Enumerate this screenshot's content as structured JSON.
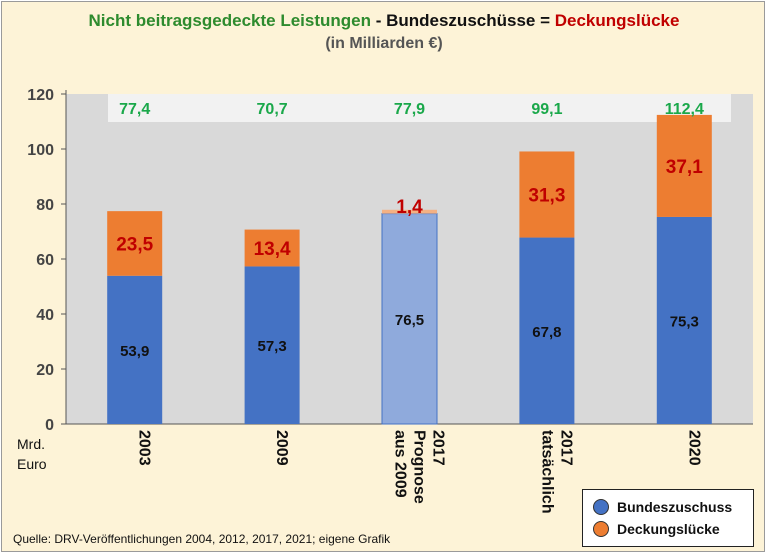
{
  "title": {
    "part1": "Nicht beitragsgedeckte Leistungen",
    "op1": " - ",
    "part2": "Bundeszuschüsse",
    "op2": " = ",
    "part3": "Deckungslücke",
    "subtitle": "(in Milliarden €)"
  },
  "unit_label_line1": "Mrd.",
  "unit_label_line2": "Euro",
  "source": "Quelle: DRV-Veröffentlichungen 2004, 2012, 2017, 2021; eigene Grafik",
  "legend": {
    "items": [
      {
        "label": "Bundeszuschuss",
        "color": "#4472c4"
      },
      {
        "label": "Deckungslücke",
        "color": "#ed7d31"
      }
    ]
  },
  "colors": {
    "bundeszuschuss": "#4472c4",
    "bundeszuschuss_prognose": "#8faadc",
    "deckungsluecke": "#ed7d31",
    "deckungsluecke_prognose": "#f4b183",
    "total_label": "#1aa84a",
    "gap_label": "#c00000",
    "plot_background": "#d9d9d9",
    "totals_band": "#f2f2f2"
  },
  "chart_data": {
    "type": "bar",
    "stacked": true,
    "categories": [
      [
        "2003"
      ],
      [
        "2009"
      ],
      [
        "2017",
        "Prognose",
        "aus 2009"
      ],
      [
        "2017",
        "tatsächlich"
      ],
      [
        "2020"
      ]
    ],
    "series": [
      {
        "name": "Bundeszuschuss",
        "values": [
          53.9,
          57.3,
          76.5,
          67.8,
          75.3
        ],
        "labels": [
          "53,9",
          "57,3",
          "76,5",
          "67,8",
          "75,3"
        ]
      },
      {
        "name": "Deckungslücke",
        "values": [
          23.5,
          13.4,
          1.4,
          31.3,
          37.1
        ],
        "labels": [
          "23,5",
          "13,4",
          "1,4",
          "31,3",
          "37,1"
        ]
      }
    ],
    "totals": [
      77.4,
      70.7,
      77.9,
      99.1,
      112.4
    ],
    "total_labels": [
      "77,4",
      "70,7",
      "77,9",
      "99,1",
      "112,4"
    ],
    "prognose_index": 2,
    "ylim": [
      0,
      120
    ],
    "yticks": [
      0,
      20,
      40,
      60,
      80,
      100,
      120
    ],
    "grid": false,
    "legend_position": "bottom-right"
  }
}
